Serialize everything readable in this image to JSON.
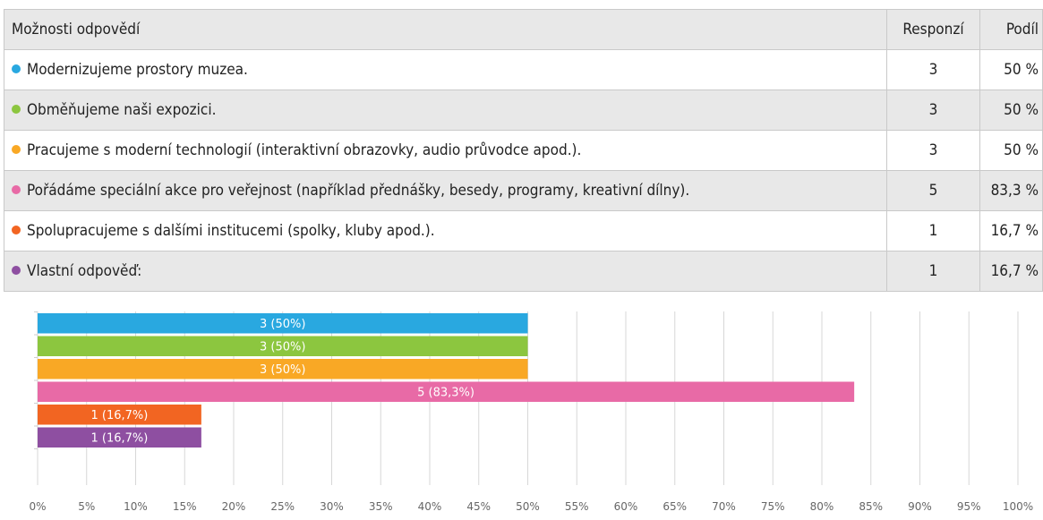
{
  "table": {
    "headers": {
      "option": "Možnosti odpovědí",
      "responses": "Responzí",
      "share": "Podíl"
    },
    "rows": [
      {
        "label": "Modernizujeme prostory muzea.",
        "responses": "3",
        "share": "50 %",
        "color": "#29a8e0"
      },
      {
        "label": "Obměňujeme naši expozici.",
        "responses": "3",
        "share": "50 %",
        "color": "#8cc63f"
      },
      {
        "label": "Pracujeme s moderní technologií (interaktivní obrazovky, audio průvodce apod.).",
        "responses": "3",
        "share": "50 %",
        "color": "#f9a825"
      },
      {
        "label": "Pořádáme speciální akce pro veřejnost (například přednášky, besedy, programy, kreativní dílny).",
        "responses": "5",
        "share": "83,3 %",
        "color": "#e86aa6"
      },
      {
        "label": "Spolupracujeme s dalšími institucemi (spolky, kluby apod.).",
        "responses": "1",
        "share": "16,7 %",
        "color": "#f26522"
      },
      {
        "label": "Vlastní odpověď:",
        "responses": "1",
        "share": "16,7 %",
        "color": "#8e4fa1"
      }
    ]
  },
  "chart_data": {
    "type": "bar",
    "orientation": "horizontal",
    "categories": [
      "Modernizujeme prostory muzea.",
      "Obměňujeme naši expozici.",
      "Pracujeme s moderní technologií (interaktivní obrazovky, audio průvodce apod.).",
      "Pořádáme speciální akce pro veřejnost (například přednášky, besedy, programy, kreativní dílny).",
      "Spolupracujeme s dalšími institucemi (spolky, kluby apod.).",
      "Vlastní odpověď:"
    ],
    "values": [
      50,
      50,
      50,
      83.3,
      16.7,
      16.7
    ],
    "data_labels": [
      "3 (50%)",
      "3 (50%)",
      "3 (50%)",
      "5 (83,3%)",
      "1 (16,7%)",
      "1 (16,7%)"
    ],
    "colors": [
      "#29a8e0",
      "#8cc63f",
      "#f9a825",
      "#e86aa6",
      "#f26522",
      "#8e4fa1"
    ],
    "xlim": [
      0,
      100
    ],
    "xticks": [
      "0%",
      "5%",
      "10%",
      "15%",
      "20%",
      "25%",
      "30%",
      "35%",
      "40%",
      "45%",
      "50%",
      "55%",
      "60%",
      "65%",
      "70%",
      "75%",
      "80%",
      "85%",
      "90%",
      "95%",
      "100%"
    ],
    "grid": true
  }
}
